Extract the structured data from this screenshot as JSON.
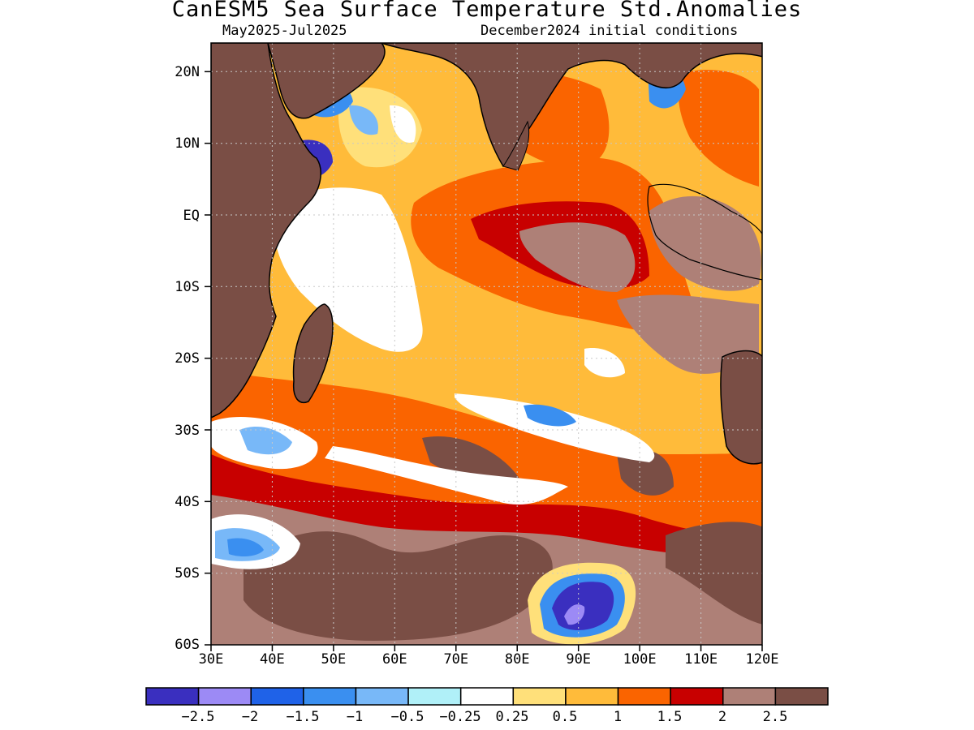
{
  "title": "CanESM5 Sea Surface Temperature Std.Anomalies",
  "subtitle_left": "May2025-Jul2025",
  "subtitle_right": "December2024 initial conditions",
  "map": {
    "lon_range": [
      30,
      120
    ],
    "lat_range": [
      -60,
      24
    ],
    "x_tick_labels": [
      "30E",
      "40E",
      "50E",
      "60E",
      "70E",
      "80E",
      "90E",
      "100E",
      "110E",
      "120E"
    ],
    "y_tick_labels": [
      "20N",
      "10N",
      "EQ",
      "10S",
      "20S",
      "30S",
      "40S",
      "50S",
      "60S"
    ],
    "y_tick_values": [
      20,
      10,
      0,
      -10,
      -20,
      -30,
      -40,
      -50,
      -60
    ],
    "x_tick_values": [
      30,
      40,
      50,
      60,
      70,
      80,
      90,
      100,
      110,
      120
    ],
    "gridlines": true,
    "land_color": "#7a4e45"
  },
  "colorbar": {
    "colors": [
      "#3a2fbf",
      "#9c8af5",
      "#1f62e8",
      "#3a8ff0",
      "#78b8f8",
      "#b0f0f8",
      "#ffffff",
      "#ffe07a",
      "#ffbb3a",
      "#fa6400",
      "#c80000",
      "#ae8077",
      "#7a4e45"
    ],
    "labels": [
      "-2.5",
      "-2",
      "-1.5",
      "-1",
      "-0.5",
      "-0.25",
      "0.25",
      "0.5",
      "1",
      "1.5",
      "2",
      "2.5"
    ]
  }
}
